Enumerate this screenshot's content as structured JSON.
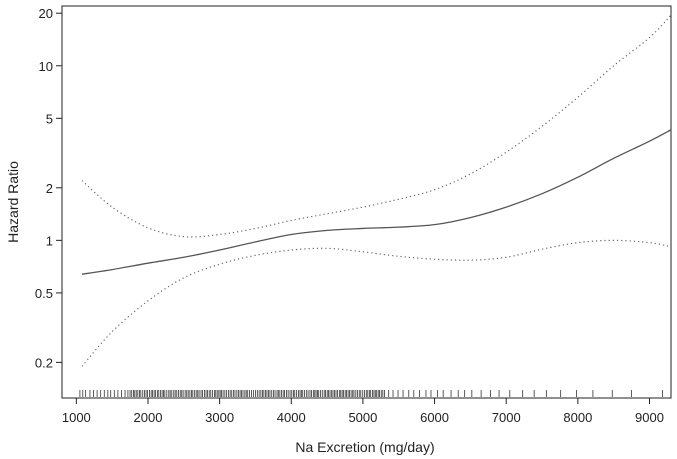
{
  "chart_data": {
    "type": "line",
    "xlabel": "Na Excretion (mg/day)",
    "ylabel": "Hazard Ratio",
    "xlim": [
      800,
      9300
    ],
    "ylim": [
      0.125,
      22
    ],
    "y_scale": "log",
    "x_ticks": [
      1000,
      2000,
      3000,
      4000,
      5000,
      6000,
      7000,
      8000,
      9000
    ],
    "x_tick_labels": [
      "1000",
      "2000",
      "3000",
      "4000",
      "5000",
      "6000",
      "7000",
      "8000",
      "9000"
    ],
    "y_ticks": [
      0.2,
      0.5,
      1,
      2,
      5,
      10,
      20
    ],
    "y_tick_labels": [
      "0.2",
      "0.5",
      "1",
      "2",
      "5",
      "10",
      "20"
    ],
    "grid": false,
    "legend": "none",
    "series": [
      {
        "role": "estimate",
        "style": "solid",
        "x": [
          1080,
          1500,
          2000,
          2500,
          3000,
          3500,
          4000,
          4500,
          5000,
          5500,
          6000,
          6500,
          7000,
          7500,
          8000,
          8500,
          9000,
          9300
        ],
        "y": [
          0.64,
          0.68,
          0.74,
          0.8,
          0.88,
          0.98,
          1.08,
          1.14,
          1.17,
          1.19,
          1.23,
          1.35,
          1.55,
          1.85,
          2.3,
          2.95,
          3.7,
          4.3
        ]
      },
      {
        "role": "upper-ci",
        "style": "dotted",
        "x": [
          1080,
          1500,
          2000,
          2500,
          3000,
          3500,
          4000,
          4500,
          5000,
          5500,
          6000,
          6500,
          7000,
          7500,
          8000,
          8500,
          9000,
          9300
        ],
        "y": [
          2.2,
          1.55,
          1.18,
          1.05,
          1.08,
          1.17,
          1.3,
          1.42,
          1.55,
          1.72,
          1.95,
          2.4,
          3.2,
          4.5,
          6.6,
          10,
          14.5,
          19.5
        ]
      },
      {
        "role": "lower-ci",
        "style": "dotted",
        "x": [
          1080,
          1500,
          2000,
          2500,
          3000,
          3500,
          4000,
          4500,
          5000,
          5500,
          6000,
          6500,
          7000,
          7500,
          8000,
          8500,
          9000,
          9300
        ],
        "y": [
          0.19,
          0.3,
          0.45,
          0.61,
          0.73,
          0.82,
          0.88,
          0.9,
          0.86,
          0.81,
          0.78,
          0.77,
          0.8,
          0.89,
          0.97,
          1.0,
          0.97,
          0.92
        ]
      }
    ],
    "rug": {
      "sparse_low": [
        1050,
        1090,
        1130,
        1190,
        1240,
        1290,
        1340,
        1390,
        1440,
        1480,
        1530,
        1580,
        1630,
        1680,
        1720
      ],
      "dense_range": [
        1750,
        5300
      ],
      "sparse_high": [
        5360,
        5420,
        5490,
        5560,
        5640,
        5710,
        5790,
        5880,
        5950,
        6040,
        6120,
        6230,
        6330,
        6420,
        6520,
        6650,
        6780,
        6900,
        7050,
        7230,
        7390,
        7560,
        7760,
        7980,
        8210,
        8480,
        8750,
        9180
      ]
    }
  }
}
